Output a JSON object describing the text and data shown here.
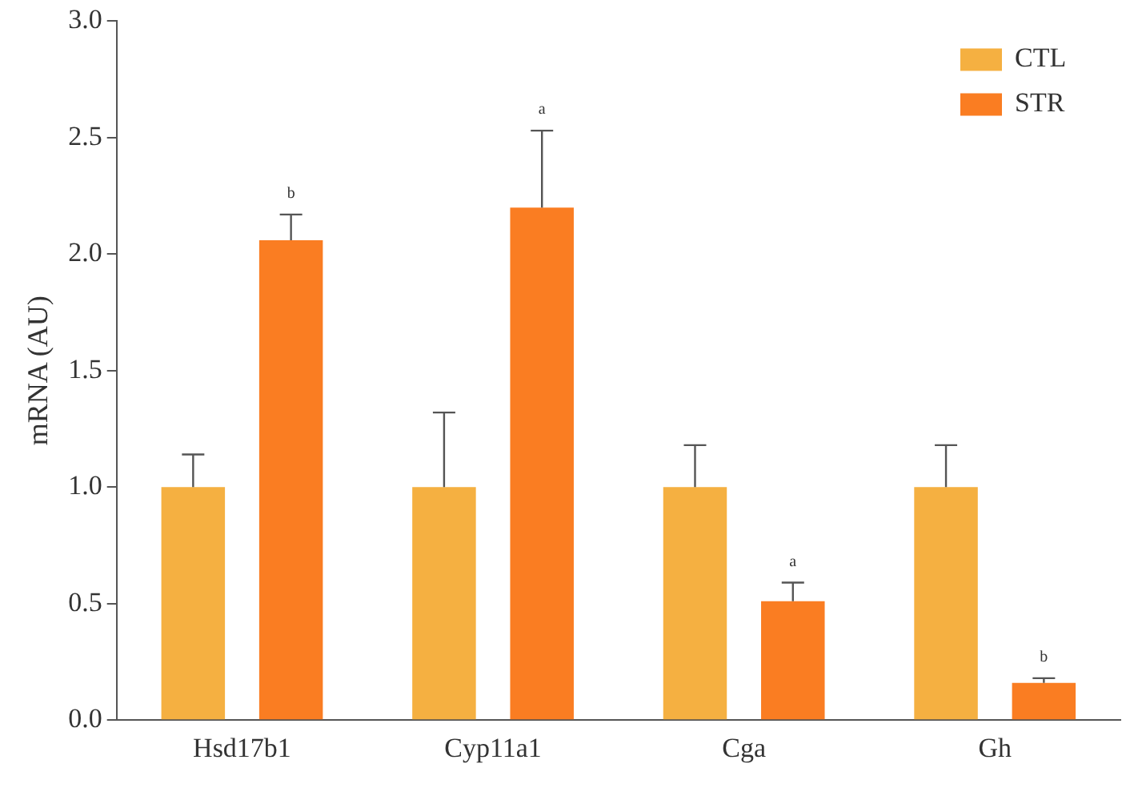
{
  "chart_data": {
    "type": "bar",
    "ylabel": "mRNA (AU)",
    "categories": [
      "Hsd17b1",
      "Cyp11a1",
      "Cga",
      "Gh"
    ],
    "series": [
      {
        "name": "CTL",
        "color": "#f5b041",
        "values": [
          1.0,
          1.0,
          1.0,
          1.0
        ],
        "errors": [
          [
            1.0,
            1.14
          ],
          [
            1.0,
            1.32
          ],
          [
            1.0,
            1.18
          ],
          [
            1.0,
            1.18
          ]
        ]
      },
      {
        "name": "STR",
        "color": "#fa7d22",
        "values": [
          2.06,
          2.2,
          0.51,
          0.16
        ],
        "errors": [
          [
            2.06,
            2.17
          ],
          [
            2.2,
            2.53
          ],
          [
            0.51,
            0.59
          ],
          [
            0.16,
            0.18
          ]
        ]
      }
    ],
    "annotations": [
      "b",
      "a",
      "a",
      "b"
    ],
    "ylim": [
      0,
      3
    ],
    "yticks": [
      {
        "value": 0,
        "label": "0.0"
      },
      {
        "value": 0.5,
        "label": "0.5"
      },
      {
        "value": 1,
        "label": "1.0"
      },
      {
        "value": 1.5,
        "label": "1.5"
      },
      {
        "value": 2,
        "label": "2.0"
      },
      {
        "value": 2.5,
        "label": "2.5"
      },
      {
        "value": 3,
        "label": "3.0"
      }
    ],
    "grid": false,
    "legend": "top right"
  }
}
